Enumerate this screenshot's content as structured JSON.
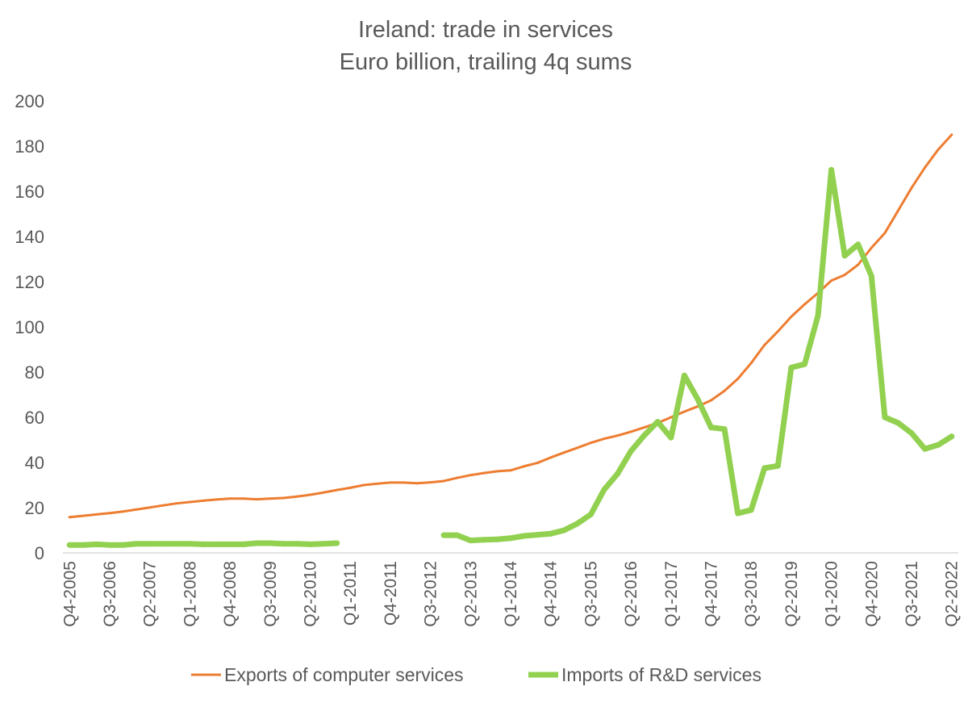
{
  "chart_data": {
    "type": "line",
    "title": "Ireland: trade in services",
    "subtitle": "Euro billion, trailing 4q sums",
    "xlabel": "",
    "ylabel": "",
    "ylim": [
      0,
      200
    ],
    "yticks": [
      0,
      20,
      40,
      60,
      80,
      100,
      120,
      140,
      160,
      180,
      200
    ],
    "grid": false,
    "legend": "bottom",
    "categories": [
      "Q4-2005",
      "Q1-2006",
      "Q2-2006",
      "Q3-2006",
      "Q4-2006",
      "Q1-2007",
      "Q2-2007",
      "Q3-2007",
      "Q4-2007",
      "Q1-2008",
      "Q2-2008",
      "Q3-2008",
      "Q4-2008",
      "Q1-2009",
      "Q2-2009",
      "Q3-2009",
      "Q4-2009",
      "Q1-2010",
      "Q2-2010",
      "Q3-2010",
      "Q4-2010",
      "Q1-2011",
      "Q2-2011",
      "Q3-2011",
      "Q4-2011",
      "Q1-2012",
      "Q2-2012",
      "Q3-2012",
      "Q4-2012",
      "Q1-2013",
      "Q2-2013",
      "Q3-2013",
      "Q4-2013",
      "Q1-2014",
      "Q2-2014",
      "Q3-2014",
      "Q4-2014",
      "Q1-2015",
      "Q2-2015",
      "Q3-2015",
      "Q4-2015",
      "Q1-2016",
      "Q2-2016",
      "Q3-2016",
      "Q4-2016",
      "Q1-2017",
      "Q2-2017",
      "Q3-2017",
      "Q4-2017",
      "Q1-2018",
      "Q2-2018",
      "Q3-2018",
      "Q4-2018",
      "Q1-2019",
      "Q2-2019",
      "Q3-2019",
      "Q4-2019",
      "Q1-2020",
      "Q2-2020",
      "Q3-2020",
      "Q4-2020",
      "Q1-2021",
      "Q2-2021",
      "Q3-2021",
      "Q4-2021",
      "Q1-2022",
      "Q2-2022"
    ],
    "tick_labels": [
      "Q4-2005",
      "Q3-2006",
      "Q2-2007",
      "Q1-2008",
      "Q4-2008",
      "Q3-2009",
      "Q2-2010",
      "Q1-2011",
      "Q4-2011",
      "Q3-2012",
      "Q2-2013",
      "Q1-2014",
      "Q4-2014",
      "Q3-2015",
      "Q2-2016",
      "Q1-2017",
      "Q4-2017",
      "Q3-2018",
      "Q2-2019",
      "Q1-2020",
      "Q4-2020",
      "Q3-2021",
      "Q2-2022"
    ],
    "series": [
      {
        "name": "Exports of computer services",
        "color": "#ed7d31",
        "values": [
          15.8,
          16.4,
          17.0,
          17.6,
          18.3,
          19.2,
          20.1,
          21.0,
          21.9,
          22.5,
          23.1,
          23.6,
          24.0,
          24.0,
          23.7,
          24.0,
          24.3,
          24.9,
          25.7,
          26.7,
          27.8,
          28.8,
          30.0,
          30.6,
          31.1,
          31.1,
          30.8,
          31.2,
          31.8,
          33.2,
          34.4,
          35.3,
          36.1,
          36.5,
          38.3,
          39.8,
          42.2,
          44.4,
          46.5,
          48.7,
          50.5,
          51.9,
          53.6,
          55.5,
          57.5,
          60.0,
          62.5,
          64.8,
          67.5,
          71.7,
          77.0,
          84.0,
          92.0,
          98.0,
          104.5,
          110.0,
          115.0,
          120.5,
          123.0,
          127.5,
          135.0,
          141.5,
          151.5,
          161.5,
          170.5,
          178.5,
          185.0
        ]
      },
      {
        "name": "Imports of R&D services",
        "color": "#92d050",
        "values": [
          3.5,
          3.5,
          3.8,
          3.5,
          3.5,
          4.0,
          4.0,
          4.0,
          4.0,
          4.0,
          3.8,
          3.8,
          3.8,
          3.8,
          4.3,
          4.3,
          4.0,
          4.0,
          3.8,
          4.0,
          4.3,
          null,
          null,
          null,
          null,
          null,
          null,
          null,
          7.8,
          7.8,
          5.5,
          5.8,
          6.0,
          6.5,
          7.5,
          8.0,
          8.5,
          10.0,
          13.0,
          17.0,
          28.0,
          35.0,
          45.0,
          52.0,
          58.0,
          51.0,
          78.5,
          68.0,
          55.5,
          54.8,
          17.5,
          19.0,
          37.5,
          38.5,
          82.0,
          83.5,
          105.0,
          169.5,
          131.5,
          136.5,
          122.5,
          60.0,
          57.5,
          53.0,
          46.0,
          47.8,
          51.5
        ]
      }
    ]
  }
}
